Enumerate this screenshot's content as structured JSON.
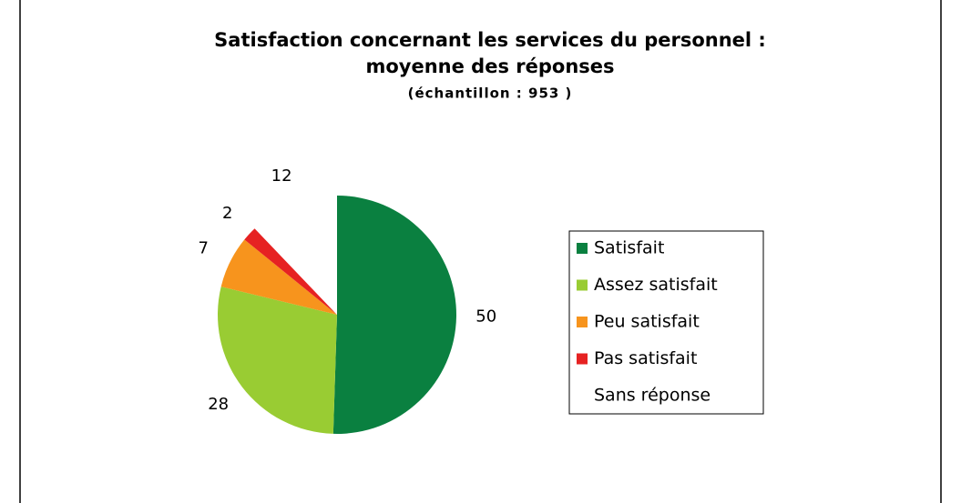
{
  "chart_data": {
    "type": "pie",
    "title": [
      "Satisfaction concernant les services du personnel :",
      "moyenne des réponses"
    ],
    "subtitle": "(échantillon : 953 )",
    "categories": [
      "Satisfait",
      "Assez satisfait",
      "Peu satisfait",
      "Pas satisfait",
      "Sans réponse"
    ],
    "values": [
      50,
      28,
      7,
      2,
      12
    ],
    "colors": [
      "#0a8040",
      "#99cc33",
      "#f7941d",
      "#e62222",
      "#ffffff"
    ],
    "legend": "right"
  }
}
